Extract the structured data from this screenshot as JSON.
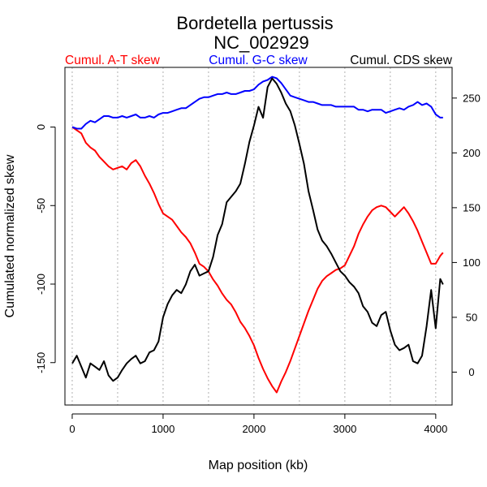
{
  "chart_data": {
    "type": "line",
    "title": [
      "Bordetella pertussis",
      "NC_002929"
    ],
    "xlabel": "Map position (kb)",
    "ylabel": "Cumulated normalized skew",
    "xlim": [
      -80,
      4180
    ],
    "ylim": [
      -177,
      38
    ],
    "y2lim": [
      -30,
      278
    ],
    "x_ticks": [
      0,
      1000,
      2000,
      3000,
      4000
    ],
    "y_ticks": [
      0,
      -50,
      -100,
      -150
    ],
    "y2_ticks": [
      0,
      50,
      100,
      150,
      200,
      250
    ],
    "vertical_gridlines": [
      0,
      500,
      1000,
      1500,
      2000,
      2500,
      3000,
      3500,
      4000
    ],
    "legend": [
      {
        "label": "Cumul. A-T skew",
        "color": "#ff0000",
        "align": "left"
      },
      {
        "label": "Cumul. G-C skew",
        "color": "#0000ff",
        "align": "center"
      },
      {
        "label": "Cumul. CDS skew",
        "color": "#000000",
        "align": "right"
      }
    ],
    "series": [
      {
        "name": "Cumul. A-T skew",
        "color": "#ff0000",
        "axis": "left",
        "x": [
          0,
          50,
          100,
          150,
          200,
          250,
          300,
          350,
          400,
          450,
          500,
          550,
          600,
          650,
          700,
          750,
          800,
          850,
          900,
          950,
          1000,
          1050,
          1100,
          1150,
          1200,
          1250,
          1300,
          1350,
          1400,
          1450,
          1500,
          1550,
          1600,
          1650,
          1700,
          1750,
          1800,
          1850,
          1900,
          1950,
          2000,
          2050,
          2100,
          2150,
          2200,
          2250,
          2300,
          2350,
          2400,
          2450,
          2500,
          2550,
          2600,
          2650,
          2700,
          2750,
          2800,
          2850,
          2900,
          2950,
          3000,
          3050,
          3100,
          3150,
          3200,
          3250,
          3300,
          3350,
          3400,
          3450,
          3500,
          3550,
          3600,
          3650,
          3700,
          3750,
          3800,
          3850,
          3900,
          3950,
          4000,
          4050,
          4080
        ],
        "values": [
          0,
          -2,
          -4,
          -10,
          -13,
          -15,
          -19,
          -22,
          -25,
          -27,
          -26,
          -25,
          -27,
          -23,
          -21,
          -25,
          -31,
          -36,
          -42,
          -49,
          -55,
          -57,
          -59,
          -63,
          -67,
          -70,
          -74,
          -80,
          -87,
          -89,
          -92,
          -97,
          -101,
          -106,
          -110,
          -113,
          -118,
          -124,
          -128,
          -133,
          -139,
          -147,
          -154,
          -160,
          -165,
          -169,
          -162,
          -156,
          -149,
          -141,
          -133,
          -125,
          -117,
          -110,
          -103,
          -98,
          -95,
          -93,
          -91,
          -90,
          -88,
          -82,
          -76,
          -68,
          -62,
          -57,
          -53,
          -51,
          -50,
          -51,
          -54,
          -57,
          -54,
          -51,
          -55,
          -60,
          -66,
          -73,
          -80,
          -87,
          -87,
          -82,
          -80
        ]
      },
      {
        "name": "Cumul. G-C skew",
        "color": "#0000ff",
        "axis": "left",
        "x": [
          0,
          50,
          100,
          150,
          200,
          250,
          300,
          350,
          400,
          450,
          500,
          550,
          600,
          650,
          700,
          750,
          800,
          850,
          900,
          950,
          1000,
          1050,
          1100,
          1150,
          1200,
          1250,
          1300,
          1350,
          1400,
          1450,
          1500,
          1550,
          1600,
          1650,
          1700,
          1750,
          1800,
          1850,
          1900,
          1950,
          2000,
          2050,
          2100,
          2150,
          2200,
          2250,
          2300,
          2350,
          2400,
          2450,
          2500,
          2550,
          2600,
          2650,
          2700,
          2750,
          2800,
          2850,
          2900,
          2950,
          3000,
          3050,
          3100,
          3150,
          3200,
          3250,
          3300,
          3350,
          3400,
          3450,
          3500,
          3550,
          3600,
          3650,
          3700,
          3750,
          3800,
          3850,
          3900,
          3950,
          4000,
          4050,
          4080
        ],
        "values": [
          0,
          -1,
          -1,
          2,
          4,
          3,
          5,
          7,
          7,
          6,
          6,
          7,
          6,
          7,
          8,
          6,
          6,
          7,
          6,
          8,
          9,
          9,
          10,
          11,
          12,
          12,
          14,
          16,
          18,
          19,
          19,
          20,
          21,
          21,
          22,
          21,
          21,
          22,
          23,
          23,
          24,
          27,
          29,
          30,
          32,
          31,
          28,
          24,
          20,
          19,
          18,
          17,
          16,
          16,
          15,
          14,
          14,
          14,
          13,
          13,
          13,
          13,
          13,
          11,
          11,
          10,
          11,
          11,
          11,
          9,
          10,
          11,
          12,
          11,
          13,
          14,
          16,
          14,
          15,
          13,
          8,
          6,
          6
        ]
      },
      {
        "name": "Cumul. CDS skew",
        "color": "#000000",
        "axis": "right",
        "x": [
          0,
          50,
          100,
          150,
          200,
          250,
          300,
          350,
          400,
          450,
          500,
          550,
          600,
          650,
          700,
          750,
          800,
          850,
          900,
          950,
          1000,
          1050,
          1100,
          1150,
          1200,
          1250,
          1300,
          1350,
          1400,
          1450,
          1500,
          1550,
          1600,
          1650,
          1700,
          1750,
          1800,
          1850,
          1900,
          1950,
          2000,
          2050,
          2100,
          2150,
          2200,
          2250,
          2300,
          2350,
          2400,
          2450,
          2500,
          2550,
          2600,
          2650,
          2700,
          2750,
          2800,
          2850,
          2900,
          2950,
          3000,
          3050,
          3100,
          3150,
          3200,
          3250,
          3300,
          3350,
          3400,
          3450,
          3500,
          3550,
          3600,
          3650,
          3700,
          3750,
          3800,
          3850,
          3900,
          3950,
          4000,
          4050,
          4080
        ],
        "values": [
          8,
          15,
          5,
          -5,
          8,
          5,
          2,
          10,
          -3,
          -8,
          -5,
          2,
          8,
          12,
          15,
          8,
          10,
          18,
          20,
          28,
          50,
          62,
          70,
          75,
          72,
          80,
          92,
          98,
          88,
          90,
          92,
          105,
          125,
          135,
          155,
          160,
          165,
          172,
          190,
          210,
          225,
          242,
          232,
          260,
          268,
          263,
          255,
          245,
          238,
          225,
          208,
          190,
          165,
          148,
          130,
          120,
          115,
          108,
          100,
          92,
          88,
          82,
          78,
          72,
          60,
          55,
          45,
          42,
          52,
          55,
          38,
          25,
          20,
          22,
          25,
          10,
          8,
          15,
          42,
          75,
          40,
          85,
          80
        ]
      }
    ]
  }
}
